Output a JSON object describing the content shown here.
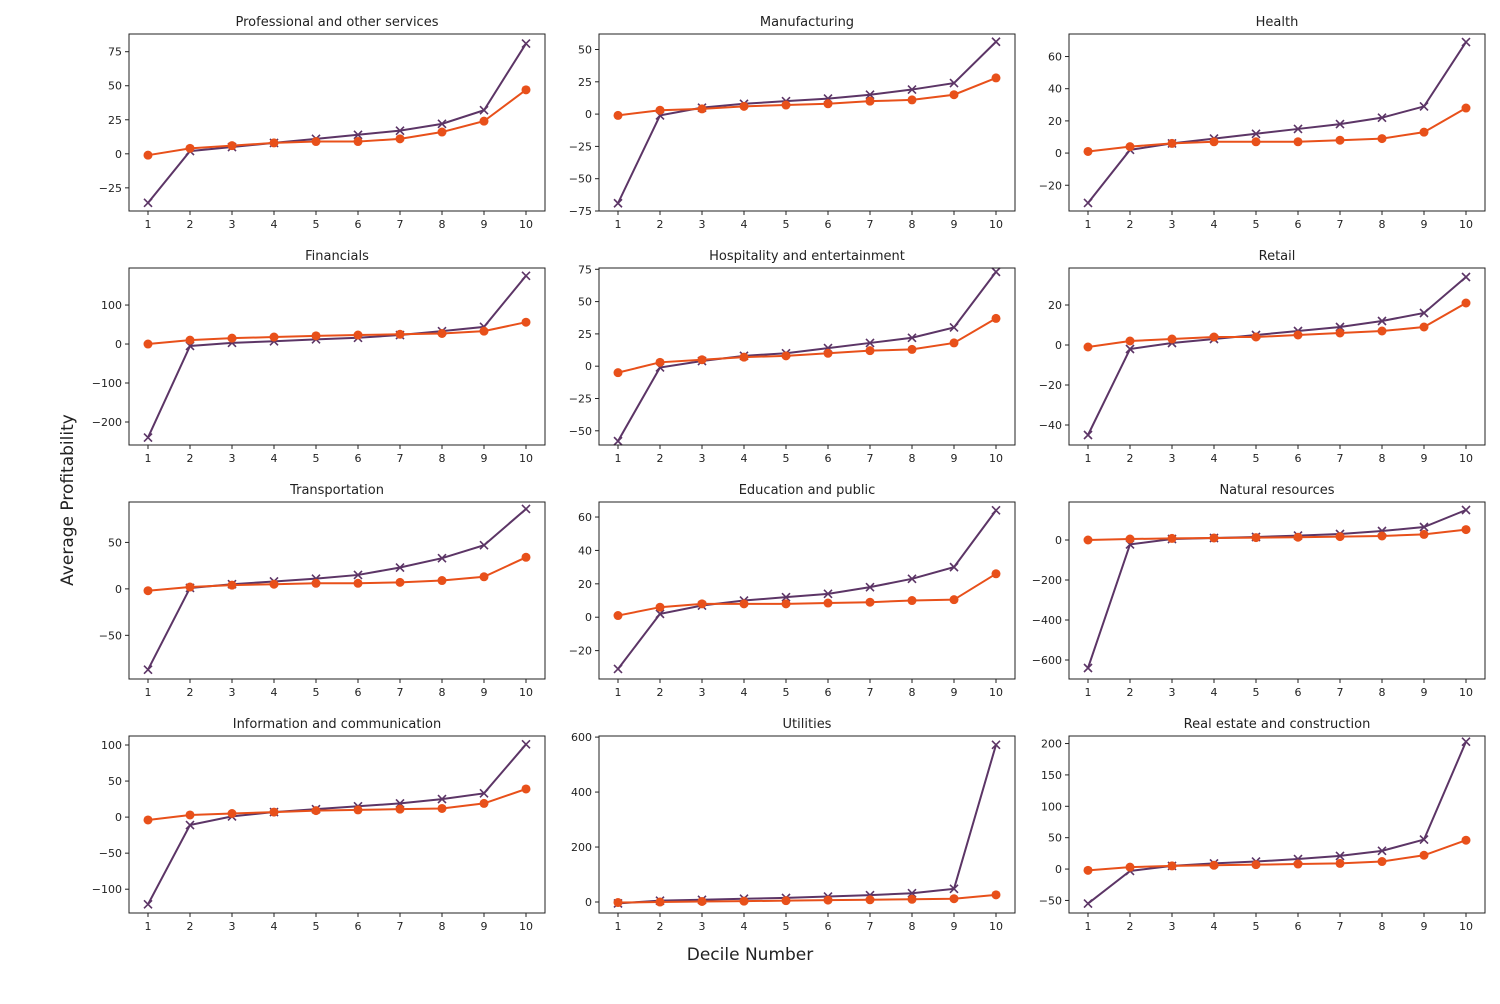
{
  "chart_data": {
    "type": "line",
    "xlabel": "Decile Number",
    "ylabel": "Average Profitability",
    "x": [
      1,
      2,
      3,
      4,
      5,
      6,
      7,
      8,
      9,
      10
    ],
    "grid": false,
    "series_colors": [
      "#5c3566",
      "#e8501a"
    ],
    "series_markers": [
      "x",
      "circle"
    ],
    "panels": [
      {
        "title": "Professional and other services",
        "ylim": [
          -42,
          88
        ],
        "yticks": [
          -25,
          0,
          25,
          50,
          75
        ],
        "series": [
          {
            "values": [
              -36,
              2,
              5,
              8,
              11,
              14,
              17,
              22,
              32,
              81
            ]
          },
          {
            "values": [
              -1,
              4,
              6,
              8,
              9,
              9,
              11,
              16,
              24,
              47
            ]
          }
        ]
      },
      {
        "title": "Manufacturing",
        "ylim": [
          -75,
          62
        ],
        "yticks": [
          -75,
          -50,
          -25,
          0,
          25,
          50
        ],
        "series": [
          {
            "values": [
              -69,
              -1,
              5,
              8,
              10,
              12,
              15,
              19,
              24,
              56
            ]
          },
          {
            "values": [
              -1,
              3,
              4,
              6,
              7,
              8,
              10,
              11,
              15,
              28
            ]
          }
        ]
      },
      {
        "title": "Health",
        "ylim": [
          -36,
          74
        ],
        "yticks": [
          -20,
          0,
          20,
          40,
          60
        ],
        "series": [
          {
            "values": [
              -31,
              2,
              6,
              9,
              12,
              15,
              18,
              22,
              29,
              69
            ]
          },
          {
            "values": [
              1,
              4,
              6,
              7,
              7,
              7,
              8,
              9,
              13,
              28
            ]
          }
        ]
      },
      {
        "title": "Financials",
        "ylim": [
          -259,
          195
        ],
        "yticks": [
          -200,
          -100,
          0,
          100
        ],
        "series": [
          {
            "values": [
              -240,
              -5,
              3,
              7,
              12,
              16,
              23,
              33,
              44,
              175
            ]
          },
          {
            "values": [
              0,
              10,
              15,
              18,
              21,
              23,
              25,
              27,
              33,
              56
            ]
          }
        ]
      },
      {
        "title": "Hospitality and entertainment",
        "ylim": [
          -61,
          76
        ],
        "yticks": [
          -50,
          -25,
          0,
          25,
          50,
          75
        ],
        "series": [
          {
            "values": [
              -58,
              -1,
              4,
              8,
              10,
              14,
              18,
              22,
              30,
              73
            ]
          },
          {
            "values": [
              -5,
              3,
              5,
              7,
              8,
              10,
              12,
              13,
              18,
              37
            ]
          }
        ]
      },
      {
        "title": "Retail",
        "ylim": [
          -50,
          38.5
        ],
        "yticks": [
          -40,
          -20,
          0,
          20
        ],
        "series": [
          {
            "values": [
              -45,
              -2,
              1,
              3,
              5,
              7,
              9,
              12,
              16,
              34
            ]
          },
          {
            "values": [
              -1,
              2,
              3,
              4,
              4,
              5,
              6,
              7,
              9,
              21
            ]
          }
        ]
      },
      {
        "title": "Transportation",
        "ylim": [
          -97,
          93.5
        ],
        "yticks": [
          -50,
          0,
          50
        ],
        "series": [
          {
            "values": [
              -87,
              1,
              5,
              8,
              11,
              15,
              23,
              33,
              47,
              86
            ]
          },
          {
            "values": [
              -2,
              2,
              4,
              5,
              6,
              6,
              7,
              9,
              13,
              34
            ]
          }
        ]
      },
      {
        "title": "Education and public",
        "ylim": [
          -37,
          69
        ],
        "yticks": [
          -20,
          0,
          20,
          40,
          60
        ],
        "series": [
          {
            "values": [
              -31,
              2,
              7,
              10,
              12,
              14,
              18,
              23,
              30,
              64
            ]
          },
          {
            "values": [
              1,
              6,
              8,
              8,
              8,
              8.5,
              9,
              10,
              10.5,
              26
            ]
          }
        ]
      },
      {
        "title": "Natural resources",
        "ylim": [
          -695,
          190
        ],
        "yticks": [
          -600,
          -400,
          -200,
          0
        ],
        "series": [
          {
            "values": [
              -640,
              -22,
              5,
              10,
              15,
              22,
              30,
              45,
              65,
              150
            ]
          },
          {
            "values": [
              0,
              5,
              8,
              10,
              12,
              14,
              17,
              20,
              28,
              52
            ]
          }
        ]
      },
      {
        "title": "Information and communication",
        "ylim": [
          -133,
          112.5
        ],
        "yticks": [
          -100,
          -50,
          0,
          50,
          100
        ],
        "series": [
          {
            "values": [
              -121,
              -11,
              1,
              7,
              11,
              15,
              19,
              25,
              33,
              101
            ]
          },
          {
            "values": [
              -4,
              3,
              5,
              7,
              9,
              10,
              11,
              12,
              19,
              39
            ]
          }
        ]
      },
      {
        "title": "Utilities",
        "ylim": [
          -40,
          604
        ],
        "yticks": [
          0,
          200,
          400,
          600
        ],
        "series": [
          {
            "values": [
              -5,
              5,
              8,
              12,
              15,
              20,
              25,
              32,
              48,
              572
            ]
          },
          {
            "values": [
              -2,
              0,
              2,
              3,
              5,
              7,
              8,
              10,
              12,
              26
            ]
          }
        ]
      },
      {
        "title": "Real estate and construction",
        "ylim": [
          -70,
          212
        ],
        "yticks": [
          -50,
          0,
          50,
          100,
          150,
          200
        ],
        "series": [
          {
            "values": [
              -55,
              -3,
              5,
              9,
              12,
              16,
              21,
              29,
              47,
              203
            ]
          },
          {
            "values": [
              -2,
              3,
              5,
              6,
              7,
              8,
              9,
              12,
              22,
              46
            ]
          }
        ]
      }
    ]
  }
}
